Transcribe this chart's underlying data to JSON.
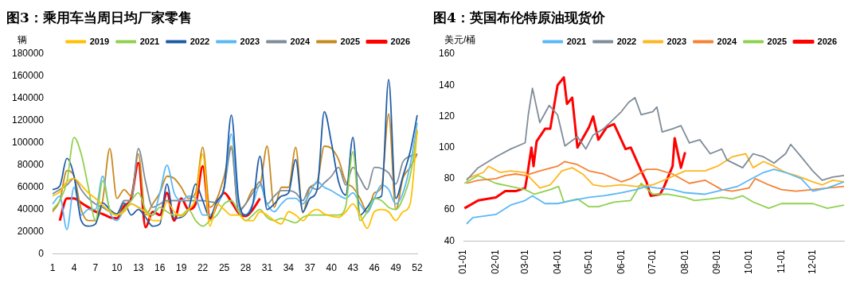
{
  "chart_data": [
    {
      "type": "line",
      "title": "图3：乘用车当周日均厂家零售",
      "ylabel": "辆",
      "legend": "top",
      "marker": "none",
      "line_style": "solid",
      "grid": false,
      "categories": [
        "1",
        null,
        null,
        "4",
        null,
        null,
        "7",
        null,
        null,
        "10",
        null,
        null,
        "13",
        null,
        null,
        "16",
        null,
        null,
        "19",
        null,
        null,
        "22",
        null,
        null,
        "25",
        null,
        null,
        "28",
        null,
        null,
        "31",
        null,
        null,
        "34",
        null,
        null,
        "37",
        null,
        null,
        "40",
        null,
        null,
        "43",
        null,
        null,
        "46",
        null,
        null,
        "49",
        null,
        null,
        "52"
      ],
      "ylim": [
        0,
        180000
      ],
      "yticks": [
        0,
        20000,
        40000,
        60000,
        80000,
        100000,
        120000,
        140000,
        160000,
        180000
      ],
      "series": [
        {
          "name": "2019",
          "color": "#ffc000",
          "values": [
            52000,
            56000,
            65000,
            68000,
            62000,
            55000,
            50000,
            44000,
            38000,
            35000,
            38000,
            45000,
            42000,
            38000,
            30000,
            30000,
            47000,
            38000,
            34000,
            40000,
            50000,
            90000,
            25000,
            45000,
            40000,
            35000,
            35000,
            30000,
            30000,
            38000,
            35000,
            30000,
            27000,
            38000,
            35000,
            30000,
            37000,
            40000,
            36000,
            34000,
            33000,
            38000,
            45000,
            35000,
            23000,
            38000,
            40000,
            38000,
            30000,
            38000,
            45000,
            112000
          ]
        },
        {
          "name": "2021",
          "color": "#92d050",
          "values": [
            40000,
            48000,
            65000,
            105000,
            90000,
            60000,
            30000,
            66000,
            40000,
            35000,
            40000,
            48000,
            55000,
            40000,
            35000,
            42000,
            38000,
            35000,
            35000,
            40000,
            30000,
            25000,
            30000,
            35000,
            45000,
            48000,
            38000,
            30000,
            35000,
            40000,
            33000,
            30000,
            32000,
            30000,
            28000,
            33000,
            35000,
            35000,
            35000,
            35000,
            35000,
            43000,
            92000,
            30000,
            38000,
            50000,
            48000,
            42000,
            40000,
            50000,
            70000,
            110000
          ]
        },
        {
          "name": "2022",
          "color": "#1f5ca8",
          "values": [
            58000,
            61000,
            86000,
            70000,
            30000,
            25000,
            27000,
            46000,
            40000,
            36000,
            46000,
            35000,
            40000,
            33000,
            25000,
            27000,
            63000,
            32000,
            33000,
            40000,
            63000,
            48000,
            33000,
            48000,
            60000,
            125000,
            50000,
            35000,
            45000,
            88000,
            40000,
            45000,
            52000,
            55000,
            85000,
            38000,
            50000,
            58000,
            128000,
            100000,
            65000,
            53000,
            105000,
            35000,
            42000,
            50000,
            52000,
            157000,
            50000,
            70000,
            92000,
            125000
          ]
        },
        {
          "name": "2023",
          "color": "#5bb8f5",
          "values": [
            45000,
            52000,
            22000,
            60000,
            35000,
            40000,
            40000,
            70000,
            38000,
            30000,
            40000,
            45000,
            42000,
            38000,
            35000,
            55000,
            80000,
            55000,
            48000,
            52000,
            50000,
            35000,
            35000,
            45000,
            60000,
            108000,
            45000,
            35000,
            45000,
            62000,
            45000,
            38000,
            45000,
            50000,
            50000,
            45000,
            55000,
            65000,
            60000,
            57000,
            53000,
            50000,
            55000,
            45000,
            37000,
            50000,
            62000,
            58000,
            45000,
            55000,
            80000,
            118000
          ]
        },
        {
          "name": "2024",
          "color": "#7f8c99",
          "values": [
            54000,
            58000,
            62000,
            68000,
            58000,
            50000,
            45000,
            42000,
            38000,
            36000,
            48000,
            48000,
            95000,
            65000,
            42000,
            45000,
            48000,
            48000,
            48000,
            48000,
            48000,
            48000,
            47000,
            46000,
            60000,
            95000,
            38000,
            45000,
            55000,
            65000,
            45000,
            52000,
            57000,
            57000,
            55000,
            48000,
            60000,
            58000,
            64000,
            70000,
            78000,
            62000,
            78000,
            68000,
            58000,
            78000,
            77000,
            73000,
            63000,
            83000,
            88000,
            90000
          ]
        },
        {
          "name": "2025",
          "color": "#c8891c",
          "values": [
            38000,
            48000,
            75000,
            70000,
            40000,
            30000,
            30000,
            48000,
            95000,
            50000,
            58000,
            52000,
            90000,
            35000,
            45000,
            55000,
            70000,
            68000,
            60000,
            50000,
            55000,
            96000,
            42000,
            50000,
            70000,
            97000,
            40000,
            45000,
            58000,
            62000,
            97000,
            42000,
            60000,
            60000,
            96000,
            37000,
            60000,
            65000,
            97000,
            95000,
            85000,
            65000,
            60000,
            50000,
            38000,
            55000,
            60000,
            126000,
            40000,
            68000,
            78000,
            90000
          ]
        },
        {
          "name": "2026",
          "color": "#ff0000",
          "values": [
            null,
            30000,
            50000,
            50000,
            46000,
            42000,
            38000,
            36000,
            33000,
            32000,
            43000,
            50000,
            82000,
            24000,
            38000,
            35000,
            55000,
            30000,
            50000,
            40000,
            45000,
            79000,
            32000,
            45000,
            55000,
            47000,
            37000,
            34000,
            40000,
            50000,
            null,
            null,
            null,
            null,
            null,
            null,
            null,
            null,
            null,
            null,
            null,
            null,
            null,
            null,
            null,
            null,
            null,
            null,
            null,
            null,
            null,
            null
          ]
        }
      ]
    },
    {
      "type": "line",
      "title": "图4：英国布伦特原油现货价",
      "ylabel": "美元/桶",
      "legend": "top",
      "marker": "none",
      "line_style": "solid",
      "grid": false,
      "xlim": [
        "--01-01",
        "--12-31"
      ],
      "xticks": [
        {
          "value": "--01-01",
          "label": "01-01"
        },
        {
          "value": "--02-01",
          "label": "02-01"
        },
        {
          "value": "--03-01",
          "label": "03-01"
        },
        {
          "value": "--04-01",
          "label": "04-01"
        },
        {
          "value": "--05-01",
          "label": "05-01"
        },
        {
          "value": "--06-01",
          "label": "06-01"
        },
        {
          "value": "--07-01",
          "label": "07-01"
        },
        {
          "value": "--08-01",
          "label": "08-01"
        },
        {
          "value": "--09-01",
          "label": "09-01"
        },
        {
          "value": "--10-01",
          "label": "10-01"
        },
        {
          "value": "--11-01",
          "label": "11-01"
        },
        {
          "value": "--12-01",
          "label": "12-01"
        }
      ],
      "ylim": [
        40,
        160
      ],
      "yticks": [
        40,
        60,
        80,
        100,
        120,
        140,
        160
      ],
      "series": [
        {
          "name": "2021",
          "color": "#5bb8f5",
          "x": [
            "--01-04",
            "--01-10",
            "--02-01",
            "--02-15",
            "--03-01",
            "--03-08",
            "--03-20",
            "--04-01",
            "--04-15",
            "--05-01",
            "--05-15",
            "--06-01",
            "--06-15",
            "--06-25",
            "--07-05",
            "--07-20",
            "--08-01",
            "--08-20",
            "--09-01",
            "--09-20",
            "--10-01",
            "--10-15",
            "--10-25",
            "--11-05",
            "--11-20",
            "--12-01",
            "--12-15",
            "--12-31"
          ],
          "values": [
            51,
            55,
            57,
            63,
            66,
            69,
            64,
            64,
            66,
            68,
            69,
            71,
            73,
            75,
            74,
            73,
            71,
            70,
            72,
            75,
            79,
            84,
            86,
            84,
            80,
            72,
            74,
            78
          ]
        },
        {
          "name": "2022",
          "color": "#7f8c99",
          "x": [
            "--01-04",
            "--01-15",
            "--02-01",
            "--02-15",
            "--03-01",
            "--03-04",
            "--03-08",
            "--03-15",
            "--03-24",
            "--04-01",
            "--04-08",
            "--04-20",
            "--04-28",
            "--05-05",
            "--05-15",
            "--06-01",
            "--06-08",
            "--06-14",
            "--06-20",
            "--07-01",
            "--07-05",
            "--07-10",
            "--07-20",
            "--07-28",
            "--08-05",
            "--08-15",
            "--08-25",
            "--09-05",
            "--09-10",
            "--09-25",
            "--10-05",
            "--10-15",
            "--10-25",
            "--11-05",
            "--11-10",
            "--11-20",
            "--12-01",
            "--12-10",
            "--12-20",
            "--12-31"
          ],
          "values": [
            79,
            87,
            94,
            99,
            103,
            121,
            138,
            116,
            127,
            121,
            101,
            107,
            99,
            108,
            112,
            123,
            129,
            132,
            121,
            123,
            126,
            110,
            112,
            114,
            103,
            105,
            96,
            99,
            92,
            87,
            96,
            94,
            90,
            96,
            102,
            94,
            85,
            79,
            81,
            82
          ]
        },
        {
          "name": "2023",
          "color": "#ffb620",
          "x": [
            "--01-04",
            "--01-20",
            "--01-25",
            "--02-05",
            "--02-15",
            "--03-01",
            "--03-15",
            "--03-25",
            "--04-05",
            "--04-15",
            "--04-25",
            "--05-05",
            "--05-15",
            "--06-01",
            "--06-15",
            "--07-01",
            "--07-15",
            "--08-01",
            "--08-20",
            "--09-01",
            "--09-15",
            "--09-28",
            "--10-05",
            "--10-15",
            "--10-25",
            "--11-05",
            "--11-15",
            "--12-01",
            "--12-10",
            "--12-20",
            "--12-31"
          ],
          "values": [
            80,
            84,
            88,
            84,
            85,
            84,
            74,
            76,
            85,
            87,
            83,
            76,
            75,
            76,
            75,
            76,
            80,
            85,
            85,
            88,
            94,
            96,
            87,
            91,
            88,
            84,
            82,
            78,
            76,
            79,
            78
          ]
        },
        {
          "name": "2024",
          "color": "#f58233",
          "x": [
            "--01-04",
            "--01-15",
            "--02-01",
            "--02-10",
            "--02-20",
            "--03-01",
            "--03-15",
            "--04-01",
            "--04-08",
            "--04-20",
            "--05-01",
            "--05-15",
            "--06-01",
            "--06-10",
            "--06-25",
            "--07-05",
            "--07-20",
            "--08-05",
            "--08-20",
            "--09-05",
            "--09-15",
            "--10-01",
            "--10-07",
            "--10-20",
            "--11-01",
            "--11-15",
            "--12-01",
            "--12-15",
            "--12-31"
          ],
          "values": [
            77,
            79,
            80,
            82,
            83,
            82,
            85,
            88,
            91,
            89,
            85,
            83,
            78,
            80,
            86,
            86,
            83,
            77,
            79,
            73,
            72,
            74,
            80,
            76,
            73,
            72,
            73,
            74,
            75
          ]
        },
        {
          "name": "2025",
          "color": "#8fd14f",
          "x": [
            "--01-02",
            "--01-15",
            "--02-01",
            "--02-15",
            "--03-01",
            "--03-10",
            "--03-25",
            "--04-02",
            "--04-07",
            "--04-20",
            "--05-01",
            "--05-10",
            "--05-25",
            "--06-10",
            "--06-20",
            "--07-01",
            "--07-15",
            "--08-01",
            "--08-10",
            "--08-25",
            "--09-05",
            "--09-15",
            "--09-25",
            "--10-05",
            "--10-20",
            "--11-01",
            "--11-15",
            "--12-01",
            "--12-15",
            "--12-31"
          ],
          "values": [
            77,
            82,
            77,
            75,
            73,
            70,
            73,
            75,
            65,
            67,
            62,
            62,
            65,
            66,
            77,
            70,
            70,
            68,
            66,
            67,
            68,
            67,
            69,
            65,
            61,
            64,
            64,
            64,
            61,
            63
          ]
        },
        {
          "name": "2026",
          "color": "#ff0000",
          "x": [
            "--01-02",
            "--01-15",
            "--02-01",
            "--02-10",
            "--02-20",
            "--03-01",
            "--03-03",
            "--03-07",
            "--03-09",
            "--03-12",
            "--03-20",
            "--03-25",
            "--04-01",
            "--04-07",
            "--04-10",
            "--04-15",
            "--04-20",
            "--05-01",
            "--05-05",
            "--05-10",
            "--05-18",
            "--05-25",
            "--06-05",
            "--06-10",
            "--06-20",
            "--06-25",
            "--06-29",
            "--07-08",
            "--07-12",
            "--07-20",
            "--07-22",
            "--07-28",
            "--08-01"
          ],
          "values": [
            61,
            66,
            68,
            72,
            72,
            74,
            82,
            100,
            88,
            104,
            112,
            112,
            140,
            145,
            128,
            132,
            100,
            113,
            120,
            105,
            113,
            115,
            99,
            100,
            85,
            78,
            69,
            70,
            75,
            88,
            106,
            87,
            97
          ]
        }
      ]
    }
  ]
}
